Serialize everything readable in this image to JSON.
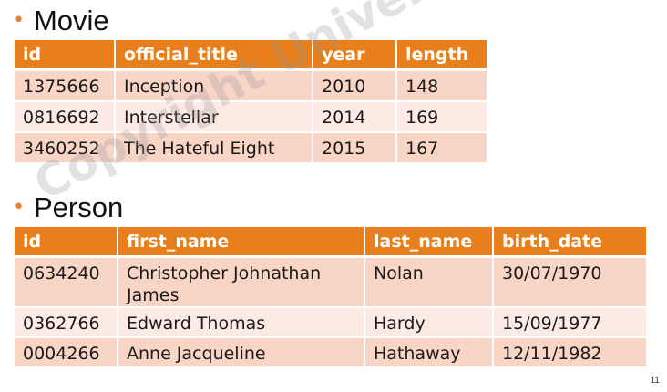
{
  "sections": [
    {
      "title": "Movie",
      "columns": [
        "id",
        "official_title",
        "year",
        "length"
      ],
      "rows": [
        [
          "1375666",
          "Inception",
          "2010",
          "148"
        ],
        [
          "0816692",
          "Interstellar",
          "2014",
          "169"
        ],
        [
          "3460252",
          "The Hateful Eight",
          "2015",
          "167"
        ]
      ]
    },
    {
      "title": "Person",
      "columns": [
        "id",
        "first_name",
        "last_name",
        "birth_date"
      ],
      "rows": [
        [
          "0634240",
          "Christopher Johnathan James",
          "Nolan",
          "30/07/1970"
        ],
        [
          "0362766",
          "Edward Thomas",
          "Hardy",
          "15/09/1977"
        ],
        [
          "0004266",
          "Anne Jacqueline",
          "Hathaway",
          "12/11/1982"
        ]
      ]
    }
  ],
  "watermark": "Copyright Università degli Studi di",
  "page_number": "11",
  "colors": {
    "accent": "#E97F1A",
    "row_odd": "#F9D5C6",
    "row_even": "#FCEBE5"
  }
}
